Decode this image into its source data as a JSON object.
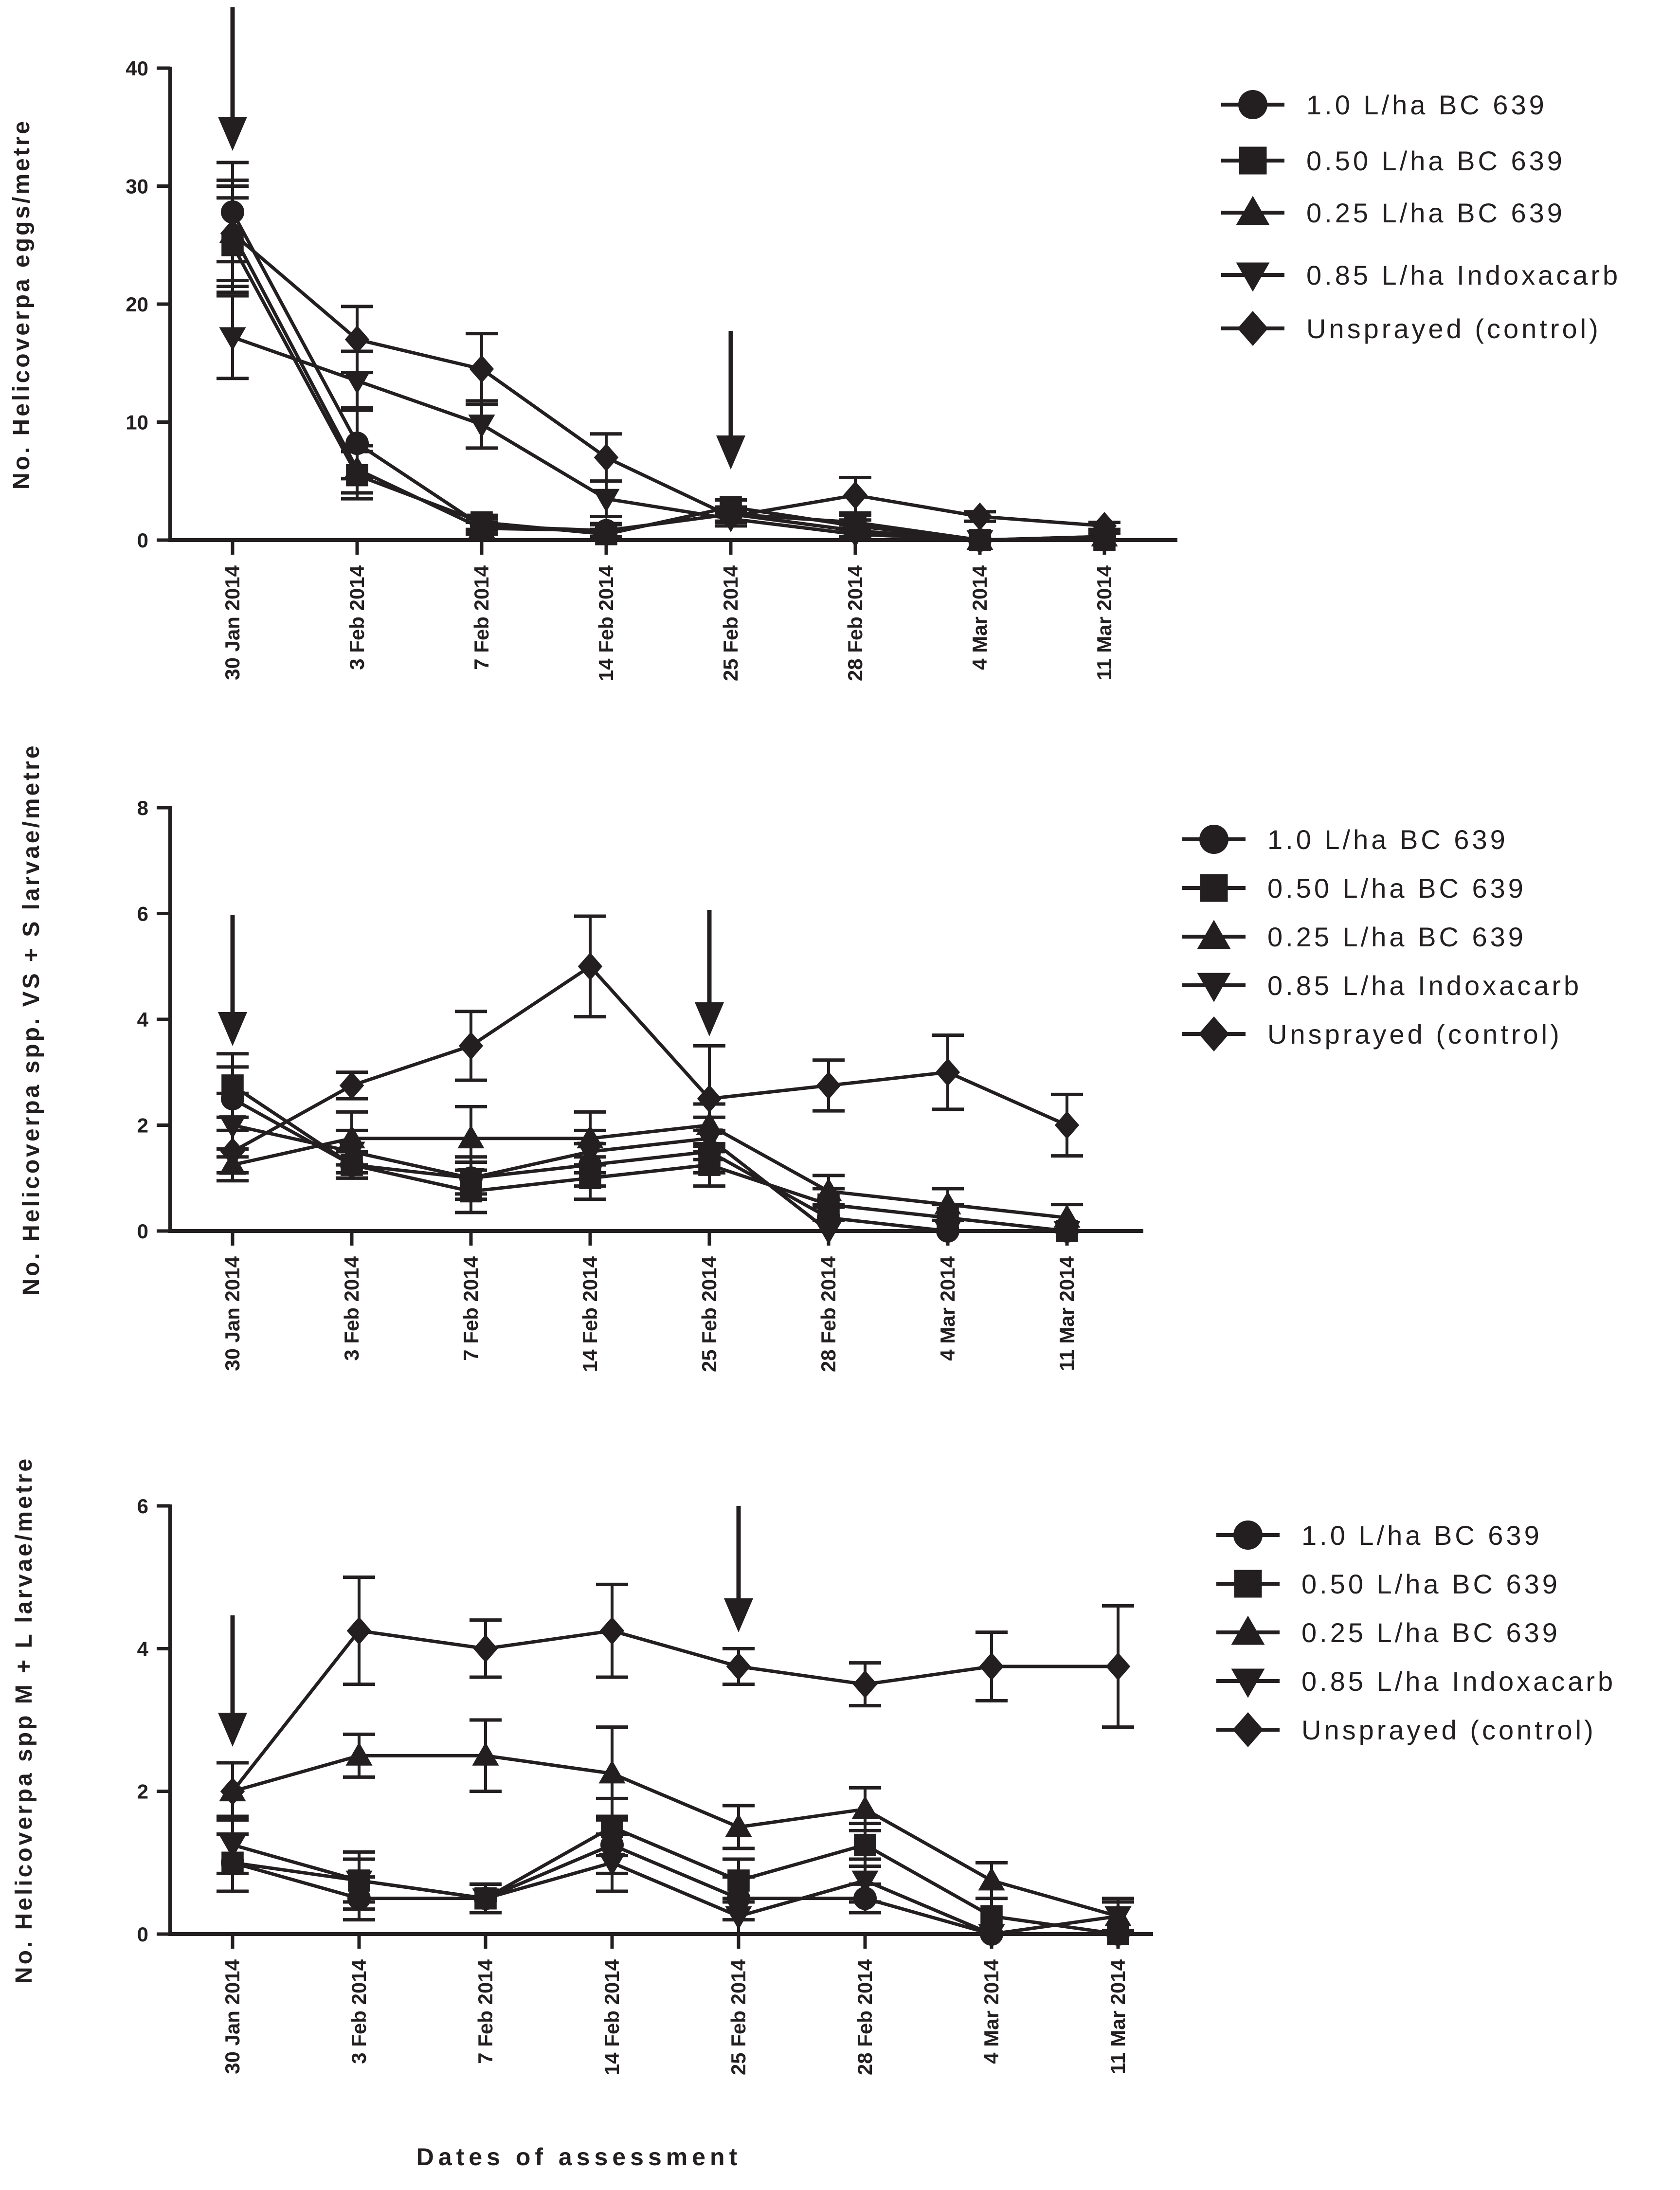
{
  "page": {
    "x_axis_title": "Dates of assessment"
  },
  "colors": {
    "ink": "#231f20",
    "background": "#ffffff"
  },
  "legend_entries": [
    {
      "label": "1.0 L/ha BC 639",
      "marker": "circle"
    },
    {
      "label": "0.50 L/ha BC 639",
      "marker": "square"
    },
    {
      "label": "0.25 L/ha BC 639",
      "marker": "triangle-up"
    },
    {
      "label": "0.85 L/ha Indoxacarb",
      "marker": "triangle-down"
    },
    {
      "label": "Unsprayed (control)",
      "marker": "diamond"
    }
  ],
  "chart_data": [
    {
      "type": "line",
      "name": "eggs",
      "ylabel": "No. Helicoverpa eggs/metre",
      "ylim": [
        0,
        40
      ],
      "yticks": [
        0,
        10,
        20,
        30,
        40
      ],
      "categories": [
        "30 Jan 2014",
        "3 Feb 2014",
        "7 Feb 2014",
        "14 Feb 2014",
        "25 Feb 2014",
        "28 Feb 2014",
        "4 Mar 2014",
        "11 Mar 2014"
      ],
      "spray_arrows_at": [
        "30 Jan 2014",
        "25 Feb 2014"
      ],
      "series": [
        {
          "name": "1.0 L/ha BC 639",
          "marker": "circle",
          "values": [
            27.8,
            8.2,
            1.2,
            0.8,
            2.2,
            0.8,
            0,
            0.3
          ],
          "errors": [
            4.2,
            3.0,
            0.6,
            0.6,
            0.6,
            0.5,
            0,
            0.3
          ]
        },
        {
          "name": "0.50 L/ha BC 639",
          "marker": "square",
          "values": [
            25,
            5.5,
            1.5,
            0.5,
            2.8,
            1.2,
            0,
            0
          ],
          "errors": [
            4.0,
            2.0,
            0.6,
            0.4,
            0.6,
            0.5,
            0,
            0
          ]
        },
        {
          "name": "0.25 L/ha BC 639",
          "marker": "triangle-up",
          "values": [
            26,
            6,
            1,
            0.8,
            2.2,
            1.5,
            0,
            0.3
          ],
          "errors": [
            4.0,
            2.0,
            0.5,
            0.5,
            0.6,
            0.6,
            0,
            0.3
          ]
        },
        {
          "name": "0.85 L/ha Indoxacarb",
          "marker": "triangle-down",
          "values": [
            17.2,
            13.5,
            9.8,
            3.5,
            1.8,
            0.5,
            0,
            0
          ],
          "errors": [
            3.5,
            2.5,
            2.0,
            1.5,
            0.6,
            0.5,
            0,
            0
          ]
        },
        {
          "name": "Unsprayed (control)",
          "marker": "diamond",
          "values": [
            26,
            17,
            14.5,
            7,
            2,
            3.8,
            2,
            1.2
          ],
          "errors": [
            4.5,
            2.8,
            3.0,
            2.0,
            0.5,
            1.5,
            0.4,
            0.3
          ]
        }
      ]
    },
    {
      "type": "line",
      "name": "vs-s-larvae",
      "ylabel": "No. Helicoverpa spp. VS + S larvae/metre",
      "ylim": [
        0,
        8
      ],
      "yticks": [
        0,
        2,
        4,
        6,
        8
      ],
      "categories": [
        "30 Jan 2014",
        "3 Feb 2014",
        "7 Feb 2014",
        "14 Feb 2014",
        "25 Feb 2014",
        "28 Feb 2014",
        "4 Mar 2014",
        "11 Mar 2014"
      ],
      "spray_arrows_at": [
        "30 Jan 2014",
        "25 Feb 2014"
      ],
      "series": [
        {
          "name": "1.0 L/ha BC 639",
          "marker": "circle",
          "values": [
            2.5,
            1.25,
            1.0,
            1.25,
            1.5,
            0.25,
            0,
            0
          ],
          "errors": [
            0.6,
            0.25,
            0.3,
            0.4,
            0.4,
            0.25,
            0,
            0
          ]
        },
        {
          "name": "0.50 L/ha BC 639",
          "marker": "square",
          "values": [
            2.75,
            1.25,
            0.75,
            1.0,
            1.25,
            0.5,
            0.25,
            0
          ],
          "errors": [
            0.6,
            0.25,
            0.4,
            0.4,
            0.4,
            0.3,
            0.25,
            0
          ]
        },
        {
          "name": "0.25 L/ha BC 639",
          "marker": "triangle-up",
          "values": [
            1.25,
            1.75,
            1.75,
            1.75,
            2.0,
            0.75,
            0.5,
            0.25
          ],
          "errors": [
            0.3,
            0.5,
            0.6,
            0.5,
            0.4,
            0.3,
            0.3,
            0.25
          ]
        },
        {
          "name": "0.85 L/ha Indoxacarb",
          "marker": "triangle-down",
          "values": [
            2.0,
            1.5,
            1.0,
            1.5,
            1.75,
            0,
            0,
            0
          ],
          "errors": [
            0.6,
            0.4,
            0.4,
            0.4,
            0.4,
            0,
            0,
            0
          ]
        },
        {
          "name": "Unsprayed (control)",
          "marker": "diamond",
          "values": [
            1.5,
            2.75,
            3.5,
            5.0,
            2.5,
            2.75,
            3.0,
            2.0
          ],
          "errors": [
            0.4,
            0.25,
            0.65,
            0.95,
            1.0,
            0.48,
            0.7,
            0.58
          ]
        }
      ]
    },
    {
      "type": "line",
      "name": "m-l-larvae",
      "ylabel": "No. Helicoverpa spp M + L larvae/metre",
      "ylim": [
        0,
        6
      ],
      "yticks": [
        0,
        2,
        4,
        6
      ],
      "categories": [
        "30 Jan 2014",
        "3 Feb 2014",
        "7 Feb 2014",
        "14 Feb 2014",
        "25 Feb 2014",
        "28 Feb 2014",
        "4 Mar 2014",
        "11 Mar 2014"
      ],
      "spray_arrows_at": [
        "30 Jan 2014",
        "25 Feb 2014"
      ],
      "series": [
        {
          "name": "1.0 L/ha BC 639",
          "marker": "circle",
          "values": [
            1.0,
            0.5,
            0.5,
            1.25,
            0.5,
            0.5,
            0,
            0
          ],
          "errors": [
            0.4,
            0.3,
            0.2,
            0.4,
            0.3,
            0.2,
            0,
            0
          ]
        },
        {
          "name": "0.50 L/ha BC 639",
          "marker": "square",
          "values": [
            1.0,
            0.75,
            0.5,
            1.5,
            0.75,
            1.25,
            0.25,
            0
          ],
          "errors": [
            0.4,
            0.4,
            0.2,
            0.4,
            0.3,
            0.3,
            0.25,
            0
          ]
        },
        {
          "name": "0.25 L/ha BC 639",
          "marker": "triangle-up",
          "values": [
            2.0,
            2.5,
            2.5,
            2.25,
            1.5,
            1.75,
            0.75,
            0.25
          ],
          "errors": [
            0.4,
            0.3,
            0.5,
            0.65,
            0.3,
            0.3,
            0.25,
            0.25
          ]
        },
        {
          "name": "0.85 L/ha Indoxacarb",
          "marker": "triangle-down",
          "values": [
            1.25,
            0.75,
            0.5,
            1.0,
            0.25,
            0.75,
            0,
            0.25
          ],
          "errors": [
            0.4,
            0.3,
            0.2,
            0.4,
            0.25,
            0.3,
            0,
            0.2
          ]
        },
        {
          "name": "Unsprayed (control)",
          "marker": "diamond",
          "values": [
            2.0,
            4.25,
            4.0,
            4.25,
            3.75,
            3.5,
            3.75,
            3.75
          ],
          "errors": [
            0.4,
            0.75,
            0.4,
            0.65,
            0.25,
            0.3,
            0.48,
            0.85
          ]
        }
      ]
    }
  ]
}
